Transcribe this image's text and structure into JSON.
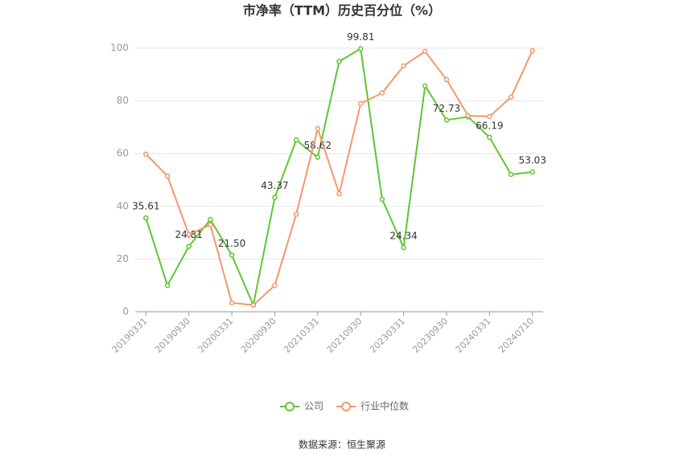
{
  "chart_data": {
    "type": "line",
    "title": "市净率（TTM）历史百分位（%）",
    "source": "数据来源：恒生聚源",
    "categories": [
      "20190331",
      null,
      "20190930",
      null,
      "20200331",
      null,
      "20200930",
      null,
      "20210331",
      null,
      "20210930",
      null,
      "20230331",
      null,
      "20230930",
      null,
      "20240331",
      null,
      "20240710"
    ],
    "series": [
      {
        "name": "公司",
        "color": "#5ec732",
        "values": [
          35.61,
          10,
          24.81,
          35,
          21.5,
          2.5,
          43.37,
          65.2,
          58.62,
          95,
          99.81,
          42.7,
          24.34,
          85.7,
          72.73,
          74,
          66.19,
          52.1,
          53.03
        ],
        "value_labels": [
          "35.61",
          null,
          "24.81",
          null,
          "21.50",
          null,
          "43.37",
          null,
          "58.62",
          null,
          "99.81",
          null,
          "24.34",
          null,
          "72.73",
          null,
          "66.19",
          null,
          "53.03"
        ]
      },
      {
        "name": "行业中位数",
        "color": "#f4976c",
        "values": [
          59.8,
          51.5,
          29.3,
          33,
          3.4,
          2.5,
          10,
          37,
          69.5,
          44.8,
          79,
          83,
          93.3,
          98.8,
          88.1,
          74.4,
          74.1,
          81.4,
          99.1
        ]
      }
    ],
    "ylim": [
      0,
      100
    ],
    "yticks": [
      0,
      20,
      40,
      60,
      80,
      100
    ],
    "grid": true,
    "legend": "bottom"
  }
}
